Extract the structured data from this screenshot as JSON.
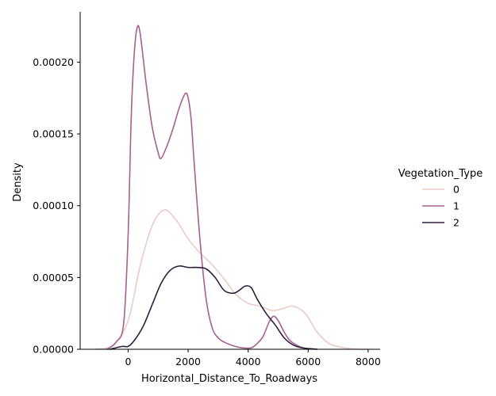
{
  "chart_data": {
    "type": "line",
    "subtype": "kde",
    "xlabel": "Horizontal_Distance_To_Roadways",
    "ylabel": "Density",
    "xlim": [
      -1600,
      8400
    ],
    "ylim": [
      0,
      0.000235
    ],
    "xticks": [
      0,
      2000,
      4000,
      6000,
      8000
    ],
    "xtick_labels": [
      "0",
      "2000",
      "4000",
      "6000",
      "8000"
    ],
    "yticks": [
      0,
      5e-05,
      0.0001,
      0.00015,
      0.0002
    ],
    "ytick_labels": [
      "0.00000",
      "0.00005",
      "0.00010",
      "0.00015",
      "0.00020"
    ],
    "grid": false,
    "legend": {
      "title": "Vegetation_Type",
      "placement": "center-right"
    },
    "series": [
      {
        "name": "0",
        "color": "#ebcbc9",
        "x": [
          -1100,
          -500,
          0,
          400,
          800,
          1200,
          1600,
          2000,
          2400,
          2800,
          3200,
          3600,
          4000,
          4400,
          4800,
          5100,
          5500,
          5900,
          6300,
          6700,
          7200,
          7700,
          8000
        ],
        "y": [
          0.0,
          3e-06,
          2e-05,
          5.8e-05,
          8.6e-05,
          9.7e-05,
          9e-05,
          7.7e-05,
          6.7e-05,
          5.9e-05,
          4.9e-05,
          3.8e-05,
          3.2e-05,
          3e-05,
          2.7e-05,
          2.8e-05,
          3e-05,
          2.5e-05,
          1.2e-05,
          4e-06,
          1e-06,
          0.0,
          0.0
        ]
      },
      {
        "name": "1",
        "color": "#a5618f",
        "x": [
          -700,
          -400,
          -150,
          0,
          100,
          200,
          300,
          400,
          600,
          800,
          1000,
          1100,
          1300,
          1500,
          1700,
          1900,
          2000,
          2100,
          2200,
          2400,
          2600,
          2800,
          3000,
          3200,
          3500,
          3800,
          4100,
          4300,
          4500,
          4700,
          4850,
          5000,
          5200,
          5400,
          5700,
          6000
        ],
        "y": [
          0.0,
          5e-06,
          1.8e-05,
          8e-05,
          0.00016,
          0.000205,
          0.000224,
          0.00022,
          0.000185,
          0.000155,
          0.000137,
          0.000133,
          0.000142,
          0.000154,
          0.000168,
          0.000178,
          0.000175,
          0.00016,
          0.00013,
          7.5e-05,
          3.5e-05,
          1.5e-05,
          8e-06,
          5e-06,
          2.5e-06,
          1e-06,
          1e-06,
          4e-06,
          9e-06,
          1.9e-05,
          2.3e-05,
          2e-05,
          1.2e-05,
          6e-06,
          2e-06,
          0.0
        ]
      },
      {
        "name": "2",
        "color": "#2d1e3e",
        "x": [
          -600,
          -200,
          0,
          200,
          500,
          800,
          1100,
          1400,
          1700,
          2000,
          2300,
          2600,
          2900,
          3200,
          3500,
          3700,
          3900,
          4100,
          4300,
          4600,
          4900,
          5200,
          5500,
          5800,
          6300
        ],
        "y": [
          0.0,
          2e-06,
          2e-06,
          6e-06,
          1.6e-05,
          3.1e-05,
          4.6e-05,
          5.5e-05,
          5.8e-05,
          5.7e-05,
          5.7e-05,
          5.6e-05,
          5e-05,
          4.1e-05,
          3.9e-05,
          4.1e-05,
          4.4e-05,
          4.3e-05,
          3.5e-05,
          2.5e-05,
          1.7e-05,
          8e-06,
          3e-06,
          1e-06,
          0.0
        ]
      }
    ]
  }
}
